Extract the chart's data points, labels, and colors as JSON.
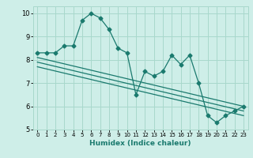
{
  "title": "",
  "xlabel": "Humidex (Indice chaleur)",
  "ylabel": "",
  "xlim": [
    -0.5,
    23.5
  ],
  "ylim": [
    5,
    10.3
  ],
  "yticks": [
    5,
    6,
    7,
    8,
    9,
    10
  ],
  "xticks": [
    0,
    1,
    2,
    3,
    4,
    5,
    6,
    7,
    8,
    9,
    10,
    11,
    12,
    13,
    14,
    15,
    16,
    17,
    18,
    19,
    20,
    21,
    22,
    23
  ],
  "bg_color": "#ceeee8",
  "grid_color": "#a8d8cc",
  "line_color": "#1a7a6e",
  "main_line_x": [
    0,
    1,
    2,
    3,
    4,
    5,
    6,
    7,
    8,
    9,
    10,
    11,
    12,
    13,
    14,
    15,
    16,
    17,
    18,
    19,
    20,
    21,
    22,
    23
  ],
  "main_line_y": [
    8.3,
    8.3,
    8.3,
    8.6,
    8.6,
    9.7,
    10.0,
    9.8,
    9.3,
    8.5,
    8.3,
    6.5,
    7.5,
    7.3,
    7.5,
    8.2,
    7.8,
    8.2,
    7.0,
    5.6,
    5.3,
    5.6,
    5.8,
    6.0
  ],
  "trend1_x": [
    0,
    23
  ],
  "trend1_y": [
    8.1,
    6.0
  ],
  "trend2_x": [
    0,
    23
  ],
  "trend2_y": [
    7.9,
    5.8
  ],
  "trend3_x": [
    0,
    23
  ],
  "trend3_y": [
    7.7,
    5.6
  ]
}
